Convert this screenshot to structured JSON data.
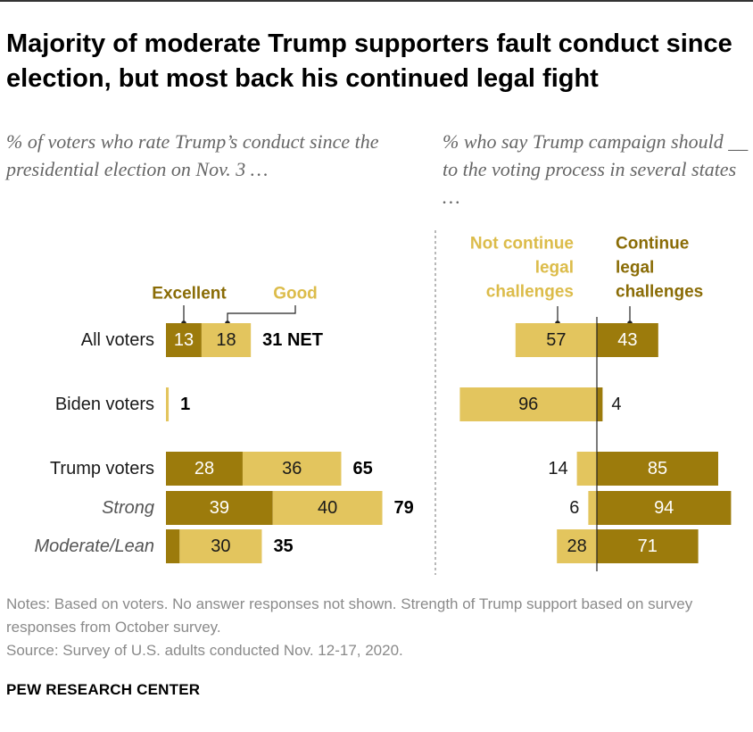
{
  "title": "Majority of moderate Trump supporters fault conduct since election, but most back his continued legal fight",
  "colors": {
    "dark": "#9c7b0c",
    "light": "#e3c55e",
    "dark_text": "#8a6c06",
    "light_text": "#dcbc4a"
  },
  "chart_data": [
    {
      "type": "bar",
      "stacked": true,
      "subtitle": "% of voters who rate Trump’s conduct since the presidential election on Nov. 3 …",
      "legend": [
        "Excellent",
        "Good"
      ],
      "categories": [
        "All voters",
        "Biden voters",
        "Trump voters",
        "Strong",
        "Moderate/Lean"
      ],
      "series": [
        {
          "name": "Excellent",
          "values": [
            13,
            0,
            28,
            39,
            5
          ],
          "labels": [
            "13",
            "",
            "28",
            "39",
            ""
          ]
        },
        {
          "name": "Good",
          "values": [
            18,
            1,
            36,
            40,
            30
          ],
          "labels": [
            "18",
            "",
            "36",
            "40",
            "30"
          ]
        }
      ],
      "totals": [
        "31 NET",
        "1",
        "65",
        "79",
        "35"
      ]
    },
    {
      "type": "bar",
      "diverging": true,
      "subtitle": "% who say Trump campaign should __  to the voting process in several states …",
      "legend": [
        "Not continue legal challenges",
        "Continue legal challenges"
      ],
      "categories": [
        "All voters",
        "Biden voters",
        "Trump voters",
        "Strong",
        "Moderate/Lean"
      ],
      "series": [
        {
          "name": "Not continue legal challenges",
          "values": [
            57,
            96,
            14,
            6,
            28
          ]
        },
        {
          "name": "Continue legal challenges",
          "values": [
            43,
            4,
            85,
            94,
            71
          ]
        }
      ]
    }
  ],
  "notes": [
    "Notes: Based on voters. No answer responses not shown. Strength of Trump support based on survey responses from October survey.",
    "Source: Survey of U.S. adults conducted Nov. 12-17, 2020."
  ],
  "footer": "PEW RESEARCH CENTER"
}
